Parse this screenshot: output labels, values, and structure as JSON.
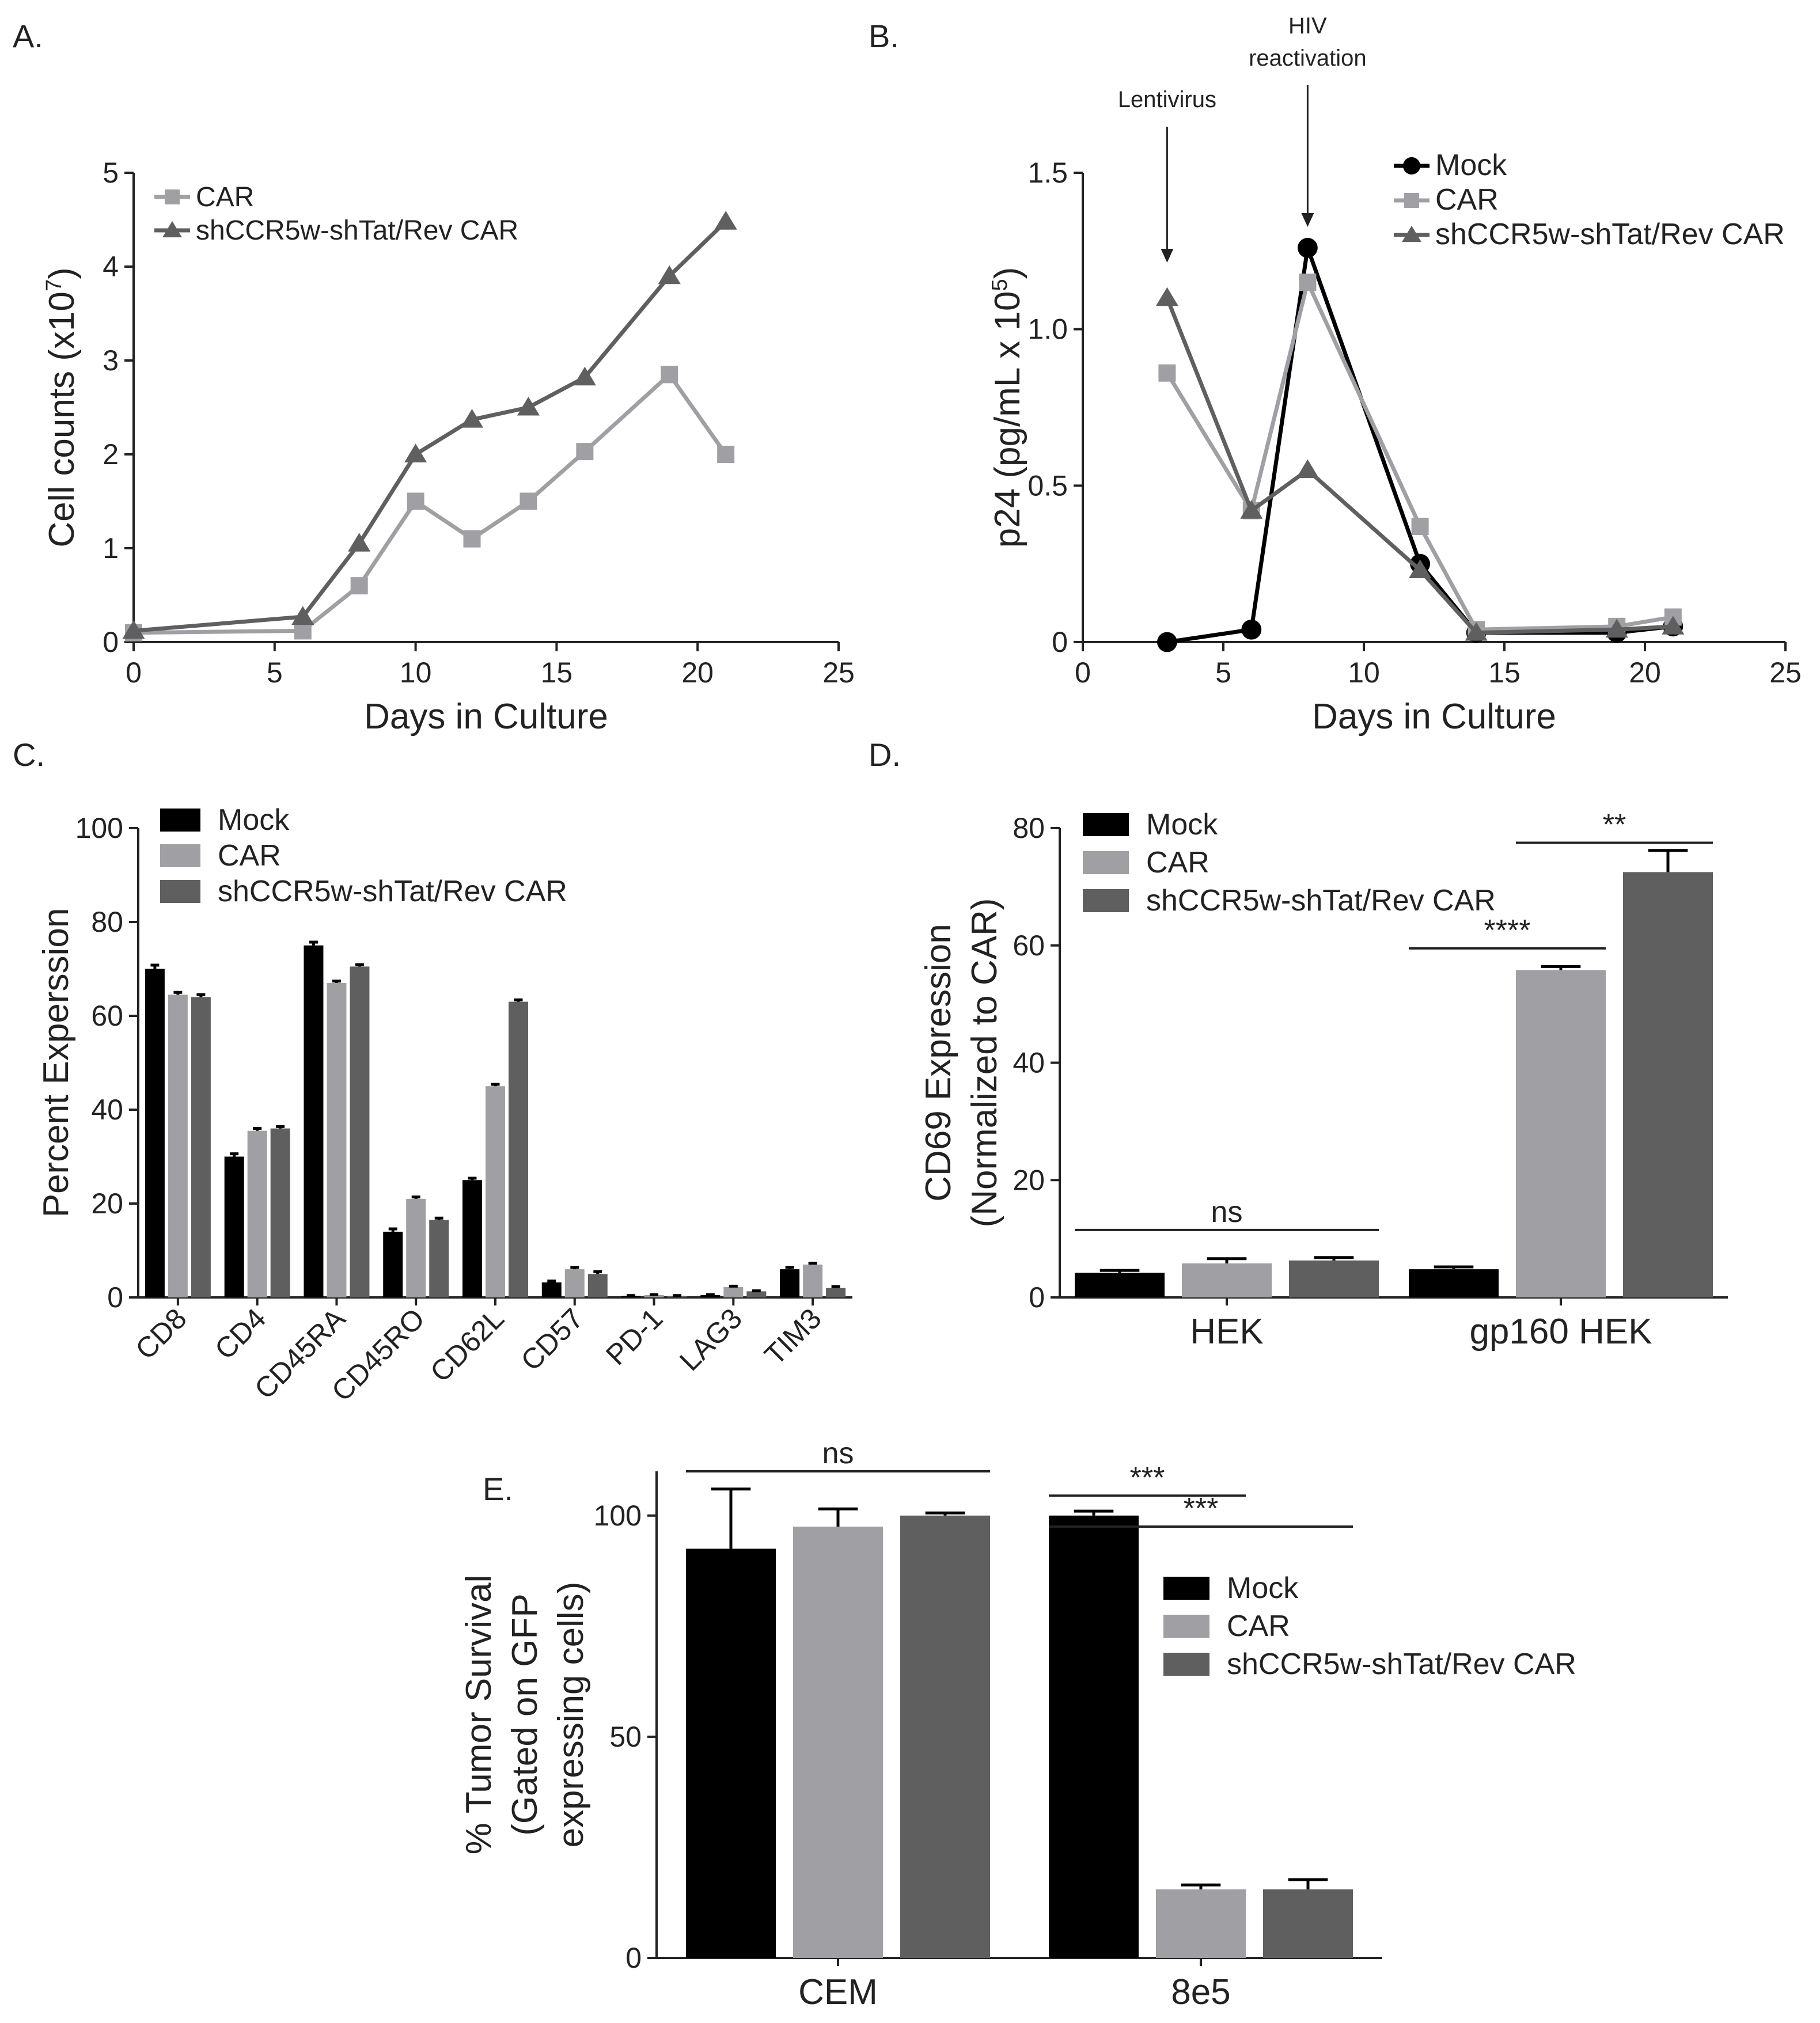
{
  "figure": {
    "panel_labels": {
      "A": "A.",
      "B": "B.",
      "C": "C.",
      "D": "D.",
      "E": "E."
    }
  },
  "colors": {
    "mock": "#000000",
    "car": "#a0a0a4",
    "shccr5": "#5f5f5f"
  },
  "chart_data": [
    {
      "id": "A",
      "type": "line",
      "xlabel": "Days in Culture",
      "ylabel": "Cell counts (x10",
      "ylabel_sup": "7",
      "ylabel_close": ")",
      "xlim": [
        0,
        25
      ],
      "ylim": [
        0,
        5
      ],
      "xticks": [
        "0",
        "5",
        "10",
        "15",
        "20",
        "25"
      ],
      "yticks": [
        "0",
        "1",
        "2",
        "3",
        "4",
        "5"
      ],
      "series": [
        {
          "name": "CAR",
          "marker": "square",
          "color": "#a0a0a4",
          "x": [
            0,
            6,
            8,
            10,
            12,
            14,
            16,
            19,
            21
          ],
          "y": [
            0.1,
            0.12,
            0.6,
            1.5,
            1.1,
            1.5,
            2.03,
            2.85,
            2.0
          ]
        },
        {
          "name": "shCCR5w-shTat/Rev CAR",
          "marker": "triangle",
          "color": "#5f5f5f",
          "x": [
            0,
            6,
            8,
            10,
            12,
            14,
            16,
            19,
            21
          ],
          "y": [
            0.12,
            0.27,
            1.05,
            2.0,
            2.37,
            2.5,
            2.82,
            3.9,
            4.48
          ]
        }
      ]
    },
    {
      "id": "B",
      "type": "line",
      "xlabel": "Days in Culture",
      "ylabel": "p24 (pg/mL x 10",
      "ylabel_sup": "5",
      "ylabel_close": ")",
      "xlim": [
        0,
        25
      ],
      "ylim": [
        0,
        1.5
      ],
      "xticks": [
        "0",
        "5",
        "10",
        "15",
        "20",
        "25"
      ],
      "yticks": [
        "0",
        "0.5",
        "1.0",
        "1.5"
      ],
      "annotations": [
        {
          "text": "Lentivirus",
          "x": 3
        },
        {
          "text": "HIV",
          "text2": "reactivation",
          "x": 8
        }
      ],
      "series": [
        {
          "name": "Mock",
          "marker": "circle",
          "color": "#000000",
          "x": [
            3,
            6,
            8,
            12,
            14,
            19,
            21
          ],
          "y": [
            0.0,
            0.04,
            1.26,
            0.25,
            0.03,
            0.03,
            0.05
          ]
        },
        {
          "name": "CAR",
          "marker": "square",
          "color": "#a0a0a4",
          "x": [
            3,
            6,
            8,
            12,
            14,
            19,
            21
          ],
          "y": [
            0.86,
            0.42,
            1.15,
            0.37,
            0.04,
            0.05,
            0.08
          ]
        },
        {
          "name": "shCCR5w-shTat/Rev CAR",
          "marker": "triangle",
          "color": "#5f5f5f",
          "x": [
            3,
            6,
            8,
            12,
            14,
            19,
            21
          ],
          "y": [
            1.1,
            0.42,
            0.55,
            0.23,
            0.03,
            0.04,
            0.05
          ]
        }
      ]
    },
    {
      "id": "C",
      "type": "bar",
      "ylabel": "Percent Experssion",
      "ylim": [
        0,
        100
      ],
      "yticks": [
        "0",
        "20",
        "40",
        "60",
        "80",
        "100"
      ],
      "categories": [
        "CD8",
        "CD4",
        "CD45RA",
        "CD45RO",
        "CD62L",
        "CD57",
        "PD-1",
        "LAG3",
        "TIM3"
      ],
      "series": [
        {
          "name": "Mock",
          "color": "#000000",
          "values": [
            70,
            30,
            75,
            14,
            25,
            3.2,
            0.3,
            0.5,
            6
          ]
        },
        {
          "name": "CAR",
          "color": "#a0a0a4",
          "values": [
            64.5,
            35.5,
            67,
            21,
            45,
            6,
            0.5,
            2.2,
            7
          ]
        },
        {
          "name": "shCCR5w-shTat/Rev CAR",
          "color": "#5f5f5f",
          "values": [
            64,
            36,
            70.5,
            16.5,
            63,
            5,
            0.3,
            1.3,
            2
          ]
        }
      ],
      "errors": [
        [
          0.8,
          0.6,
          0.7,
          0.6,
          0.4,
          0.3,
          0.1,
          0.1,
          0.4
        ],
        [
          0.5,
          0.5,
          0.4,
          0.4,
          0.4,
          0.4,
          0.1,
          0.2,
          0.3
        ],
        [
          0.5,
          0.4,
          0.4,
          0.4,
          0.4,
          0.5,
          0.1,
          0.1,
          0.3
        ]
      ]
    },
    {
      "id": "D",
      "type": "bar",
      "ylabel": "CD69 Expression",
      "ylabel2": "(Normalized to CAR)",
      "ylim": [
        0,
        80
      ],
      "yticks": [
        "0",
        "20",
        "40",
        "60",
        "80"
      ],
      "categories": [
        "HEK",
        "gp160 HEK"
      ],
      "series": [
        {
          "name": "Mock",
          "color": "#000000",
          "values": [
            4.2,
            4.8
          ]
        },
        {
          "name": "CAR",
          "color": "#a0a0a4",
          "values": [
            5.8,
            55.8
          ]
        },
        {
          "name": "shCCR5w-shTat/Rev CAR",
          "color": "#5f5f5f",
          "values": [
            6.3,
            72.5
          ]
        }
      ],
      "errors": [
        [
          0.4,
          0.4
        ],
        [
          0.8,
          0.6
        ],
        [
          0.5,
          3.7
        ]
      ],
      "significance": [
        {
          "text": "ns",
          "from": [
            0,
            0
          ],
          "to": [
            0,
            2
          ],
          "y": 11.5
        },
        {
          "text": "****",
          "from": [
            1,
            0
          ],
          "to": [
            1,
            1
          ],
          "y": 59.5
        },
        {
          "text": "**",
          "from": [
            1,
            1
          ],
          "to": [
            1,
            2
          ],
          "y": 77.5
        }
      ]
    },
    {
      "id": "E",
      "type": "bar",
      "ylabel": "% Tumor Survival",
      "ylabel2": "(Gated on GFP",
      "ylabel3": "expressing cells)",
      "ylim": [
        0,
        110
      ],
      "yticks": [
        "0",
        "50",
        "100"
      ],
      "categories": [
        "CEM",
        "8e5"
      ],
      "series": [
        {
          "name": "Mock",
          "color": "#000000",
          "values": [
            92.5,
            100
          ]
        },
        {
          "name": "CAR",
          "color": "#a0a0a4",
          "values": [
            97.5,
            15.5
          ]
        },
        {
          "name": "shCCR5w-shTat/Rev CAR",
          "color": "#5f5f5f",
          "values": [
            100,
            15.5
          ]
        }
      ],
      "errors": [
        [
          13.5,
          1
        ],
        [
          4,
          1
        ],
        [
          0.6,
          2.2
        ]
      ],
      "significance": [
        {
          "text": "ns",
          "from": [
            0,
            0
          ],
          "to": [
            0,
            2
          ],
          "y": 110
        },
        {
          "text": "***",
          "from": [
            1,
            0
          ],
          "to": [
            1,
            1
          ],
          "y": 104.5
        },
        {
          "text": "***",
          "from": [
            1,
            0
          ],
          "to": [
            1,
            2
          ],
          "y": 97.5
        }
      ]
    }
  ]
}
